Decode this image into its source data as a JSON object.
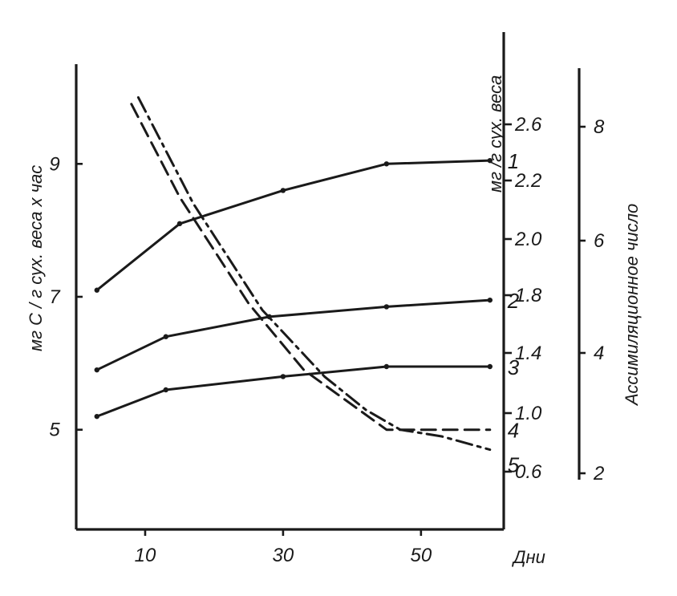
{
  "chart_data": {
    "type": "line",
    "title": "",
    "xlabel": "Дни",
    "ylabel_left": "мг С / г сух. веса х час",
    "ylabel_right_inner": "мг /г сух. веса",
    "ylabel_right_outer": "Ассимиляционное число",
    "x_ticks": [
      "10",
      "30",
      "50"
    ],
    "y_left_ticks": [
      "5",
      "7",
      "9"
    ],
    "y_right_inner_ticks": [
      "0.6",
      "1.0",
      "1.4",
      "1.8",
      "2.0",
      "2.2",
      "2.6"
    ],
    "y_right_outer_ticks": [
      "2",
      "4",
      "6",
      "8"
    ],
    "xlim": [
      0,
      62
    ],
    "ylim_left": [
      3.5,
      10.5
    ],
    "grid": false,
    "series": [
      {
        "name": "1",
        "style": "solid",
        "axis": "left",
        "x": [
          3,
          15,
          30,
          45,
          60
        ],
        "y": [
          7.1,
          8.1,
          8.6,
          9.0,
          9.05
        ]
      },
      {
        "name": "2",
        "style": "solid",
        "axis": "left",
        "x": [
          3,
          13,
          28,
          45,
          60
        ],
        "y": [
          5.9,
          6.4,
          6.7,
          6.85,
          6.95
        ]
      },
      {
        "name": "3",
        "style": "solid",
        "axis": "left",
        "x": [
          3,
          13,
          30,
          45,
          60
        ],
        "y": [
          5.2,
          5.6,
          5.8,
          5.95,
          5.95
        ]
      },
      {
        "name": "4",
        "style": "dashed",
        "axis": "left",
        "x": [
          8,
          15,
          25,
          33,
          39,
          45,
          52,
          60
        ],
        "y": [
          9.9,
          8.5,
          6.9,
          5.9,
          5.45,
          5.0,
          5.0,
          5.0
        ]
      },
      {
        "name": "5",
        "style": "dash-dot",
        "axis": "left",
        "x": [
          9,
          17,
          27,
          36,
          42,
          47,
          53,
          60
        ],
        "y": [
          10.0,
          8.4,
          6.8,
          5.8,
          5.3,
          5.0,
          4.9,
          4.7
        ]
      }
    ]
  }
}
